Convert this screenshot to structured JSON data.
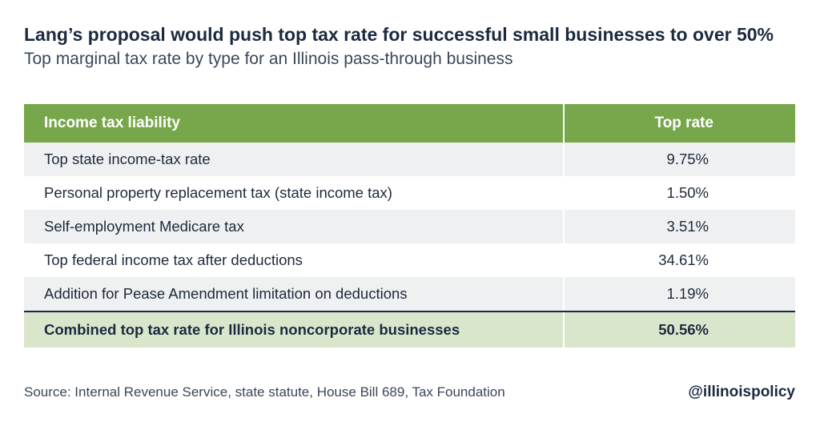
{
  "chart_data": {
    "type": "table",
    "title": "Lang’s proposal would push top tax rate for successful small businesses to over 50%",
    "subtitle": "Top marginal tax rate by type for an Illinois pass-through business",
    "columns": [
      "Income tax liability",
      "Top rate"
    ],
    "rows": [
      {
        "label": "Top state income-tax rate",
        "value": "9.75%"
      },
      {
        "label": "Personal property replacement tax (state income tax)",
        "value": "1.50%"
      },
      {
        "label": "Self-employment Medicare tax",
        "value": "3.51%"
      },
      {
        "label": "Top federal income tax after deductions",
        "value": "34.61%"
      },
      {
        "label": "Addition for Pease Amendment limitation on deductions",
        "value": "1.19%"
      }
    ],
    "total": {
      "label": "Combined top tax rate for Illinois noncorporate businesses",
      "value": "50.56%"
    }
  },
  "source": "Source: Internal Revenue Service, state statute, House Bill 689, Tax Foundation",
  "handle": "@illinoispolicy",
  "colors": {
    "header": "#77a74a",
    "total_row": "#dae6cc",
    "alt_row": "#eef0f2",
    "text": "#1b2a40"
  }
}
